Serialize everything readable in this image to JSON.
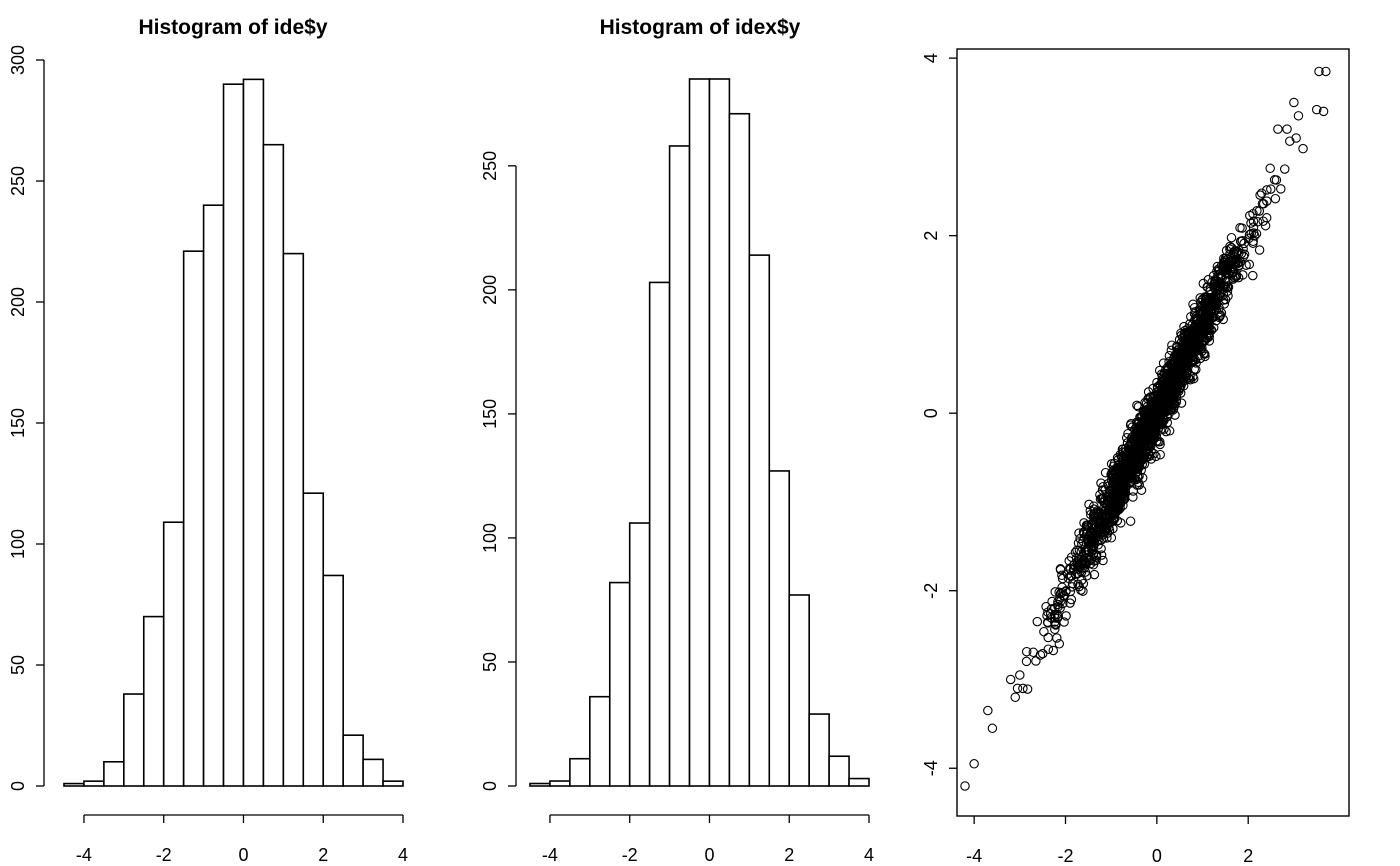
{
  "chart_data": [
    {
      "type": "bar",
      "title": "Histogram of ide$y",
      "xlabel": "",
      "ylabel": "",
      "bin_edges": [
        -4.5,
        -4,
        -3.5,
        -3,
        -2.5,
        -2,
        -1.5,
        -1,
        -0.5,
        0,
        0.5,
        1,
        1.5,
        2,
        2.5,
        3,
        3.5,
        4
      ],
      "values": [
        1,
        2,
        10,
        38,
        70,
        109,
        221,
        240,
        290,
        292,
        265,
        220,
        121,
        87,
        21,
        11,
        2
      ],
      "xlim": [
        -4.5,
        4
      ],
      "ylim": [
        0,
        300
      ],
      "xticks": [
        -4,
        -2,
        0,
        2,
        4
      ],
      "xtick_labels": [
        "-4",
        "-2",
        "0",
        "2",
        "4"
      ],
      "yticks": [
        0,
        50,
        100,
        150,
        200,
        250,
        300
      ],
      "ytick_labels": [
        "0",
        "50",
        "100",
        "150",
        "200",
        "250",
        "300"
      ]
    },
    {
      "type": "bar",
      "title": "Histogram of idex$y",
      "xlabel": "",
      "ylabel": "",
      "bin_edges": [
        -4.5,
        -4,
        -3.5,
        -3,
        -2.5,
        -2,
        -1.5,
        -1,
        -0.5,
        0,
        0.5,
        1,
        1.5,
        2,
        2.5,
        3,
        3.5,
        4
      ],
      "values": [
        1,
        2,
        11,
        36,
        82,
        106,
        203,
        258,
        285,
        285,
        271,
        214,
        127,
        77,
        29,
        12,
        3
      ],
      "xlim": [
        -4.5,
        4
      ],
      "ylim": [
        0,
        285
      ],
      "xticks": [
        -4,
        -2,
        0,
        2,
        4
      ],
      "xtick_labels": [
        "-4",
        "-2",
        "0",
        "2",
        "4"
      ],
      "yticks": [
        0,
        50,
        100,
        150,
        200,
        250
      ],
      "ytick_labels": [
        "0",
        "50",
        "100",
        "150",
        "200",
        "250"
      ]
    },
    {
      "type": "scatter",
      "title": "",
      "xlabel": "",
      "ylabel": "",
      "xlim": [
        -4.2,
        3.9
      ],
      "ylim": [
        -4.2,
        3.9
      ],
      "xticks": [
        -4,
        -2,
        0,
        2
      ],
      "xtick_labels": [
        "-4",
        "-2",
        "0",
        "2"
      ],
      "yticks": [
        -4,
        -2,
        0,
        2,
        4
      ],
      "ytick_labels": [
        "-4",
        "-2",
        "0",
        "2",
        "4"
      ],
      "trend": {
        "slope": 1.0,
        "intercept": 0.0,
        "n_points": 2000
      },
      "points": [
        [
          -4.2,
          -4.2
        ],
        [
          -4.0,
          -3.95
        ],
        [
          -3.6,
          -3.55
        ],
        [
          -3.7,
          -3.35
        ],
        [
          -3.2,
          -3.0
        ],
        [
          -3.1,
          -3.2
        ],
        [
          -3.05,
          -3.1
        ],
        [
          -3.0,
          -2.95
        ],
        [
          3.55,
          3.85
        ],
        [
          3.7,
          3.85
        ],
        [
          3.65,
          3.4
        ],
        [
          3.5,
          3.42
        ],
        [
          3.0,
          3.5
        ],
        [
          2.85,
          3.2
        ],
        [
          3.1,
          3.35
        ],
        [
          3.2,
          2.98
        ],
        [
          3.05,
          3.1
        ],
        [
          2.65,
          3.2
        ],
        [
          2.8,
          2.75
        ],
        [
          2.1,
          1.55
        ]
      ]
    }
  ]
}
